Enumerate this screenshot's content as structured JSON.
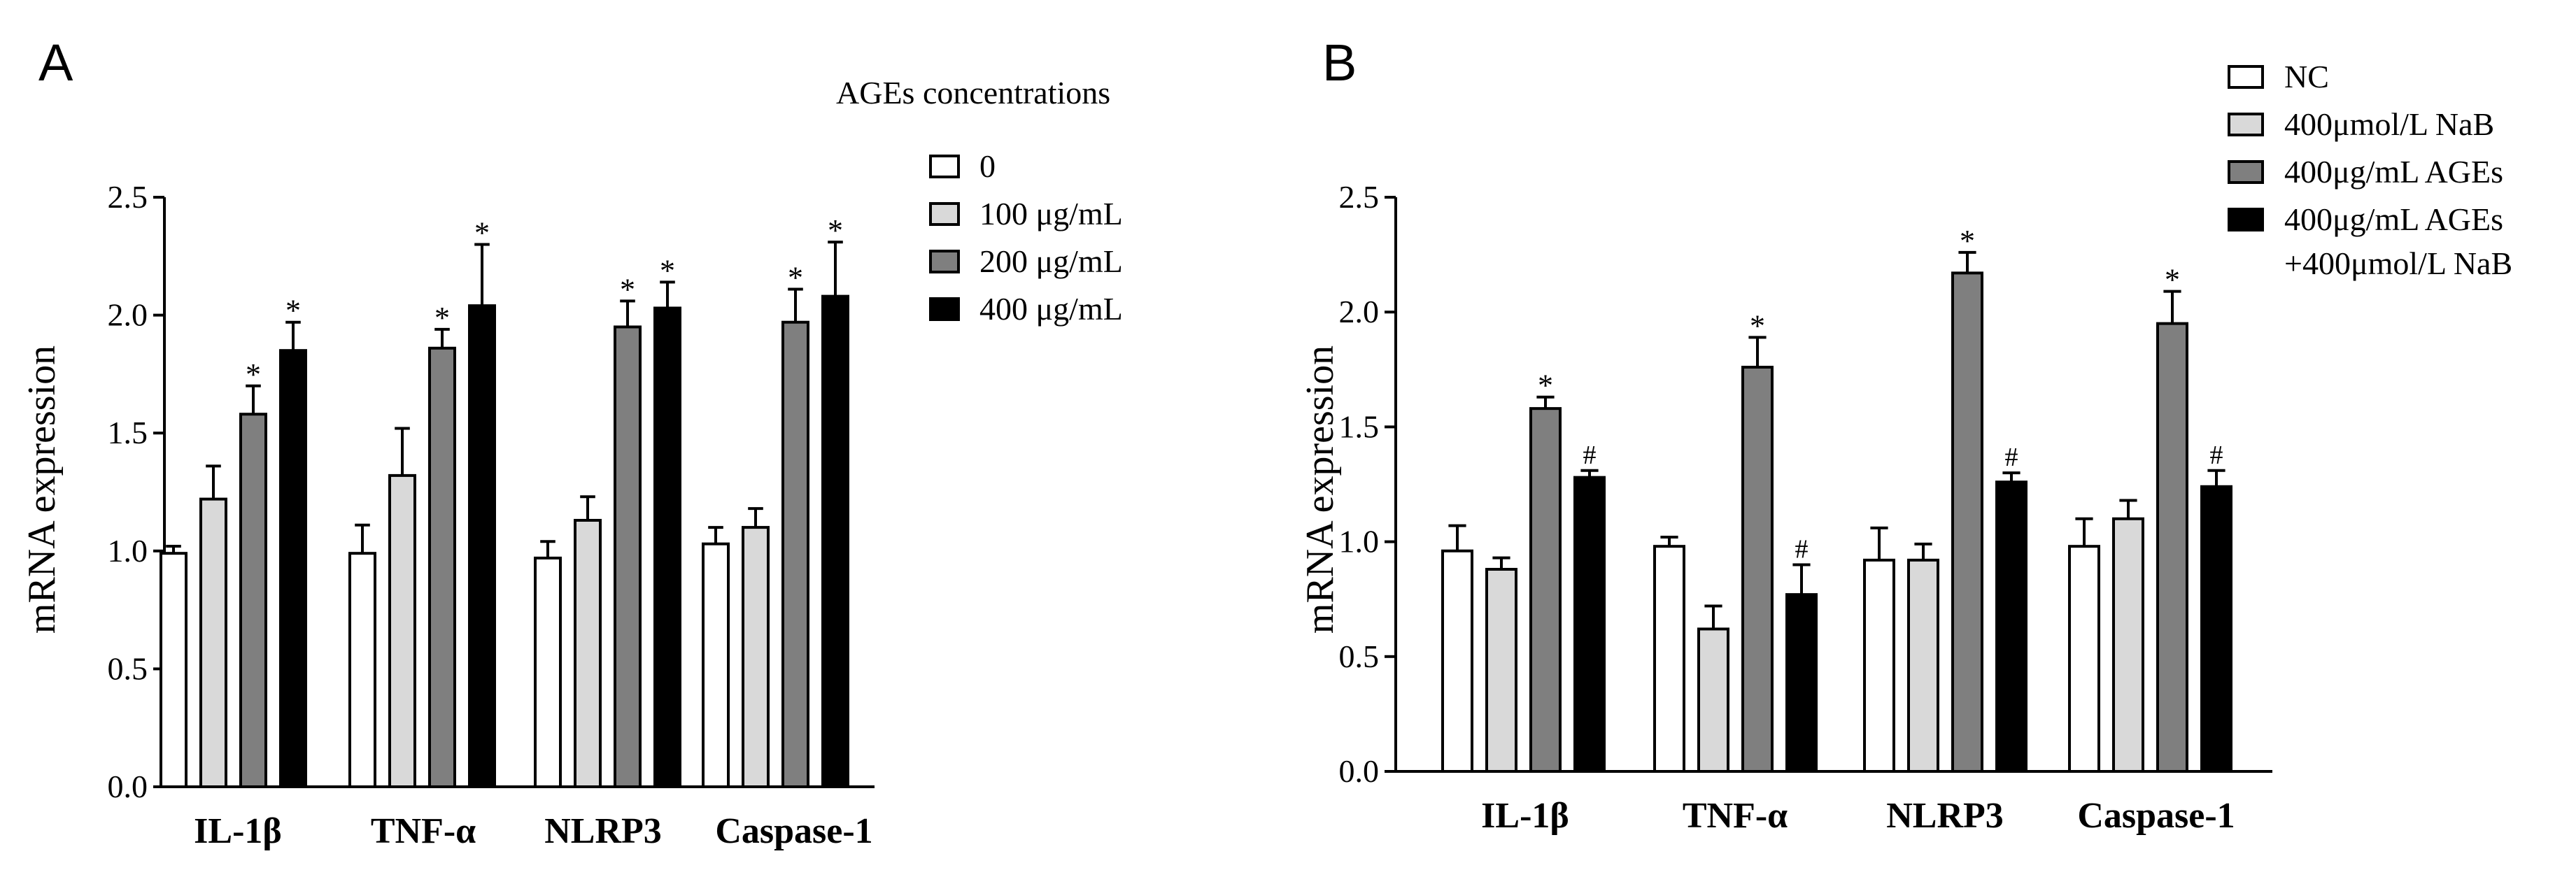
{
  "chart_data": [
    {
      "type": "bar",
      "panel_label": "A",
      "title": "",
      "xlabel": "",
      "ylabel": "mRNA expression",
      "ylim": [
        0,
        2.5
      ],
      "yticks": [
        "0.0",
        "0.5",
        "1.0",
        "1.5",
        "2.0",
        "2.5"
      ],
      "ytick_values": [
        0,
        0.5,
        1.0,
        1.5,
        2.0,
        2.5
      ],
      "categories": [
        "IL-1β",
        "TNF-α",
        "NLRP3",
        "Caspase-1"
      ],
      "legend_title": "AGEs concentrations",
      "legend_position": "top-right",
      "significance_marker": "*",
      "series": [
        {
          "name": "0",
          "fill": "#ffffff",
          "values": [
            0.99,
            0.99,
            0.97,
            1.03
          ],
          "errors": [
            0.03,
            0.12,
            0.07,
            0.07
          ],
          "marks": [
            "",
            "",
            "",
            ""
          ]
        },
        {
          "name": "100 μg/mL",
          "fill": "#d9d9d9",
          "values": [
            1.22,
            1.32,
            1.13,
            1.1
          ],
          "errors": [
            0.14,
            0.2,
            0.1,
            0.08
          ],
          "marks": [
            "",
            "",
            "",
            ""
          ]
        },
        {
          "name": "200 μg/mL",
          "fill": "#7f7f7f",
          "values": [
            1.58,
            1.86,
            1.95,
            1.97
          ],
          "errors": [
            0.12,
            0.08,
            0.11,
            0.14
          ],
          "marks": [
            "*",
            "*",
            "*",
            "*"
          ]
        },
        {
          "name": "400 μg/mL",
          "fill": "#000000",
          "values": [
            1.85,
            2.04,
            2.03,
            2.08
          ],
          "errors": [
            0.12,
            0.26,
            0.11,
            0.23
          ],
          "marks": [
            "*",
            "*",
            "*",
            "*"
          ]
        }
      ]
    },
    {
      "type": "bar",
      "panel_label": "B",
      "title": "",
      "xlabel": "",
      "ylabel": "mRNA expression",
      "ylim": [
        0,
        2.5
      ],
      "yticks": [
        "0.0",
        "0.5",
        "1.0",
        "1.5",
        "2.0",
        "2.5"
      ],
      "ytick_values": [
        0,
        0.5,
        1.0,
        1.5,
        2.0,
        2.5
      ],
      "categories": [
        "IL-1β",
        "TNF-α",
        "NLRP3",
        "Caspase-1"
      ],
      "legend_title": "",
      "legend_position": "top-right",
      "significance_marker": "* / #",
      "series": [
        {
          "name": "NC",
          "fill": "#ffffff",
          "values": [
            0.96,
            0.98,
            0.92,
            0.98
          ],
          "errors": [
            0.11,
            0.04,
            0.14,
            0.12
          ],
          "marks": [
            "",
            "",
            "",
            ""
          ]
        },
        {
          "name": "400μmol/L NaB",
          "fill": "#d9d9d9",
          "values": [
            0.88,
            0.62,
            0.92,
            1.1
          ],
          "errors": [
            0.05,
            0.1,
            0.07,
            0.08
          ],
          "marks": [
            "",
            "",
            "",
            ""
          ]
        },
        {
          "name": "400μg/mL AGEs",
          "fill": "#7f7f7f",
          "values": [
            1.58,
            1.76,
            2.17,
            1.95
          ],
          "errors": [
            0.05,
            0.13,
            0.09,
            0.14
          ],
          "marks": [
            "*",
            "*",
            "*",
            "*"
          ]
        },
        {
          "name": "400μg/mL AGEs",
          "name_line2": "+400μmol/L NaB",
          "fill": "#000000",
          "values": [
            1.28,
            0.77,
            1.26,
            1.24
          ],
          "errors": [
            0.03,
            0.13,
            0.04,
            0.07
          ],
          "marks": [
            "#",
            "#",
            "#",
            "#"
          ]
        }
      ]
    }
  ]
}
